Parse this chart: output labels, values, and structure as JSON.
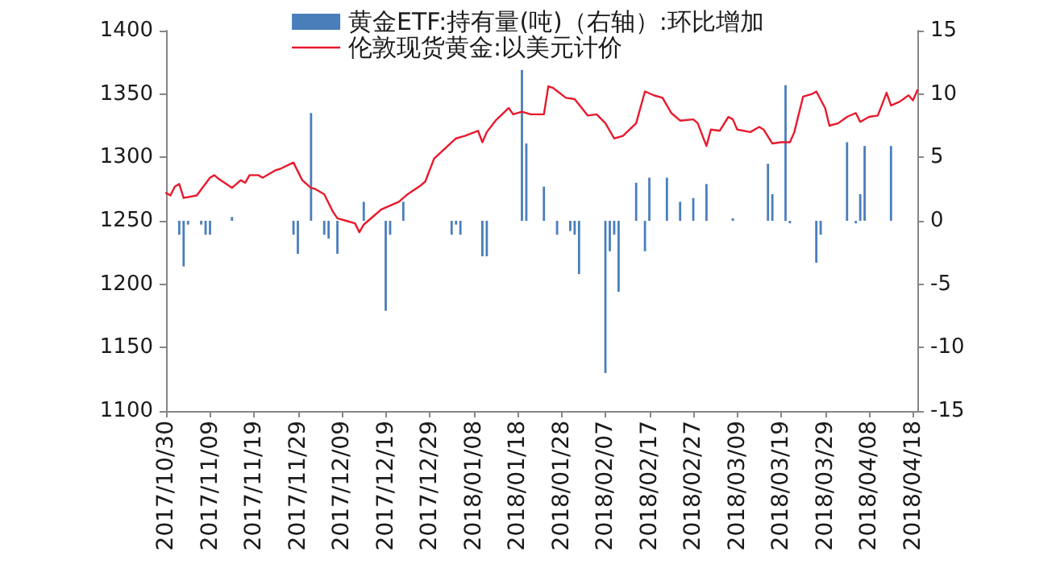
{
  "chart_data": {
    "type": "bar",
    "series": [
      {
        "name": "黄金ETF:持有量(吨)（右轴）:环比增加",
        "axis": "y2",
        "color": "#4a7ebb",
        "x": [
          "2017-11-02",
          "2017-11-03",
          "2017-11-04",
          "2017-11-07",
          "2017-11-08",
          "2017-11-09",
          "2017-11-14",
          "2017-11-28",
          "2017-11-29",
          "2017-12-02",
          "2017-12-05",
          "2017-12-06",
          "2017-12-08",
          "2017-12-14",
          "2017-12-19",
          "2017-12-20",
          "2017-12-23",
          "2018-01-03",
          "2018-01-04",
          "2018-01-05",
          "2018-01-10",
          "2018-01-11",
          "2018-01-19",
          "2018-01-20",
          "2018-01-24",
          "2018-01-27",
          "2018-01-30",
          "2018-01-31",
          "2018-02-01",
          "2018-02-07",
          "2018-02-08",
          "2018-02-09",
          "2018-02-10",
          "2018-02-14",
          "2018-02-16",
          "2018-02-17",
          "2018-02-21",
          "2018-02-24",
          "2018-02-27",
          "2018-03-02",
          "2018-03-08",
          "2018-03-16",
          "2018-03-17",
          "2018-03-20",
          "2018-03-21",
          "2018-03-27",
          "2018-03-28",
          "2018-04-03",
          "2018-04-05",
          "2018-04-06",
          "2018-04-07",
          "2018-04-13"
        ],
        "values": [
          -1.1,
          -3.6,
          -0.3,
          -0.3,
          -1.1,
          -1.1,
          0.3,
          -1.1,
          -2.6,
          8.5,
          -1.1,
          -1.4,
          -2.6,
          1.5,
          -7.1,
          -1.1,
          1.5,
          -1.1,
          -0.3,
          -1.1,
          -2.8,
          -2.8,
          11.9,
          6.1,
          2.7,
          -1.1,
          -0.8,
          -1.1,
          -4.2,
          -12.0,
          -2.4,
          -1.1,
          -5.6,
          3.0,
          -2.4,
          3.4,
          3.4,
          1.5,
          1.8,
          2.9,
          0.2,
          4.5,
          2.1,
          10.7,
          -0.2,
          -3.3,
          -1.1,
          6.2,
          -0.2,
          2.1,
          5.9,
          5.9
        ]
      },
      {
        "name": "伦敦现货黄金:以美元计价",
        "type": "line",
        "color": "#e8192c",
        "x": [
          "2017-10-30",
          "2017-10-31",
          "2017-11-01",
          "2017-11-02",
          "2017-11-03",
          "2017-11-06",
          "2017-11-09",
          "2017-11-10",
          "2017-11-11",
          "2017-11-14",
          "2017-11-16",
          "2017-11-17",
          "2017-11-18",
          "2017-11-20",
          "2017-11-21",
          "2017-11-24",
          "2017-11-25",
          "2017-11-28",
          "2017-11-29",
          "2017-11-30",
          "2017-12-02",
          "2017-12-03",
          "2017-12-05",
          "2017-12-06",
          "2017-12-07",
          "2017-12-08",
          "2017-12-10",
          "2017-12-12",
          "2017-12-13",
          "2017-12-14",
          "2017-12-16",
          "2017-12-18",
          "2017-12-20",
          "2017-12-22",
          "2017-12-24",
          "2017-12-27",
          "2017-12-28",
          "2017-12-30",
          "2018-01-04",
          "2018-01-06",
          "2018-01-09",
          "2018-01-10",
          "2018-01-11",
          "2018-01-13",
          "2018-01-16",
          "2018-01-17",
          "2018-01-19",
          "2018-01-21",
          "2018-01-24",
          "2018-01-25",
          "2018-01-26",
          "2018-01-29",
          "2018-01-31",
          "2018-02-03",
          "2018-02-05",
          "2018-02-07",
          "2018-02-09",
          "2018-02-11",
          "2018-02-14",
          "2018-02-16",
          "2018-02-18",
          "2018-02-20",
          "2018-02-22",
          "2018-02-24",
          "2018-02-27",
          "2018-02-28",
          "2018-03-02",
          "2018-03-03",
          "2018-03-05",
          "2018-03-07",
          "2018-03-08",
          "2018-03-09",
          "2018-03-12",
          "2018-03-14",
          "2018-03-15",
          "2018-03-17",
          "2018-03-19",
          "2018-03-21",
          "2018-03-22",
          "2018-03-24",
          "2018-03-26",
          "2018-03-27",
          "2018-03-29",
          "2018-03-30",
          "2018-04-01",
          "2018-04-03",
          "2018-04-05",
          "2018-04-06",
          "2018-04-08",
          "2018-04-10",
          "2018-04-12",
          "2018-04-13",
          "2018-04-15",
          "2018-04-17",
          "2018-04-18",
          "2018-04-19"
        ],
        "values": [
          1272,
          1270,
          1277,
          1279,
          1268,
          1270,
          1284,
          1286,
          1283,
          1276,
          1282,
          1280,
          1286,
          1286,
          1284,
          1290,
          1291,
          1296,
          1289,
          1282,
          1276,
          1275,
          1271,
          1264,
          1257,
          1252,
          1250,
          1248,
          1241,
          1247,
          1253,
          1259,
          1262,
          1265,
          1271,
          1278,
          1281,
          1299,
          1315,
          1317,
          1321,
          1312,
          1320,
          1329,
          1339,
          1334,
          1336,
          1334,
          1334,
          1356,
          1355,
          1347,
          1346,
          1333,
          1334,
          1327,
          1315,
          1317,
          1327,
          1352,
          1349,
          1347,
          1335,
          1329,
          1330,
          1327,
          1309,
          1322,
          1321,
          1332,
          1330,
          1322,
          1320,
          1324,
          1322,
          1311,
          1312,
          1312,
          1320,
          1348,
          1350,
          1352,
          1339,
          1325,
          1327,
          1332,
          1335,
          1328,
          1332,
          1333,
          1351,
          1341,
          1344,
          1349,
          1345,
          1353
        ]
      }
    ],
    "xlim": [
      "2017-10-30",
      "2018-04-19"
    ],
    "xticks": [
      {
        "value": "2017-10-30",
        "label": "2017/10/30"
      },
      {
        "value": "2017-11-09",
        "label": "2017/11/09"
      },
      {
        "value": "2017-11-19",
        "label": "2017/11/19"
      },
      {
        "value": "2017-11-29",
        "label": "2017/11/29"
      },
      {
        "value": "2017-12-09",
        "label": "2017/12/09"
      },
      {
        "value": "2017-12-19",
        "label": "2017/12/19"
      },
      {
        "value": "2017-12-29",
        "label": "2017/12/29"
      },
      {
        "value": "2018-01-08",
        "label": "2018/01/08"
      },
      {
        "value": "2018-01-18",
        "label": "2018/01/18"
      },
      {
        "value": "2018-01-28",
        "label": "2018/01/28"
      },
      {
        "value": "2018-02-07",
        "label": "2018/02/07"
      },
      {
        "value": "2018-02-17",
        "label": "2018/02/17"
      },
      {
        "value": "2018-02-27",
        "label": "2018/02/27"
      },
      {
        "value": "2018-03-09",
        "label": "2018/03/09"
      },
      {
        "value": "2018-03-19",
        "label": "2018/03/19"
      },
      {
        "value": "2018-03-29",
        "label": "2018/03/29"
      },
      {
        "value": "2018-04-08",
        "label": "2018/04/08"
      },
      {
        "value": "2018-04-18",
        "label": "2018/04/18"
      }
    ],
    "ylim": [
      1100,
      1400
    ],
    "yticks": [
      1100,
      1150,
      1200,
      1250,
      1300,
      1350,
      1400
    ],
    "y2lim": [
      -15,
      15
    ],
    "y2ticks": [
      -15,
      -10,
      -5,
      0,
      5,
      10,
      15
    ],
    "legend": "top"
  }
}
